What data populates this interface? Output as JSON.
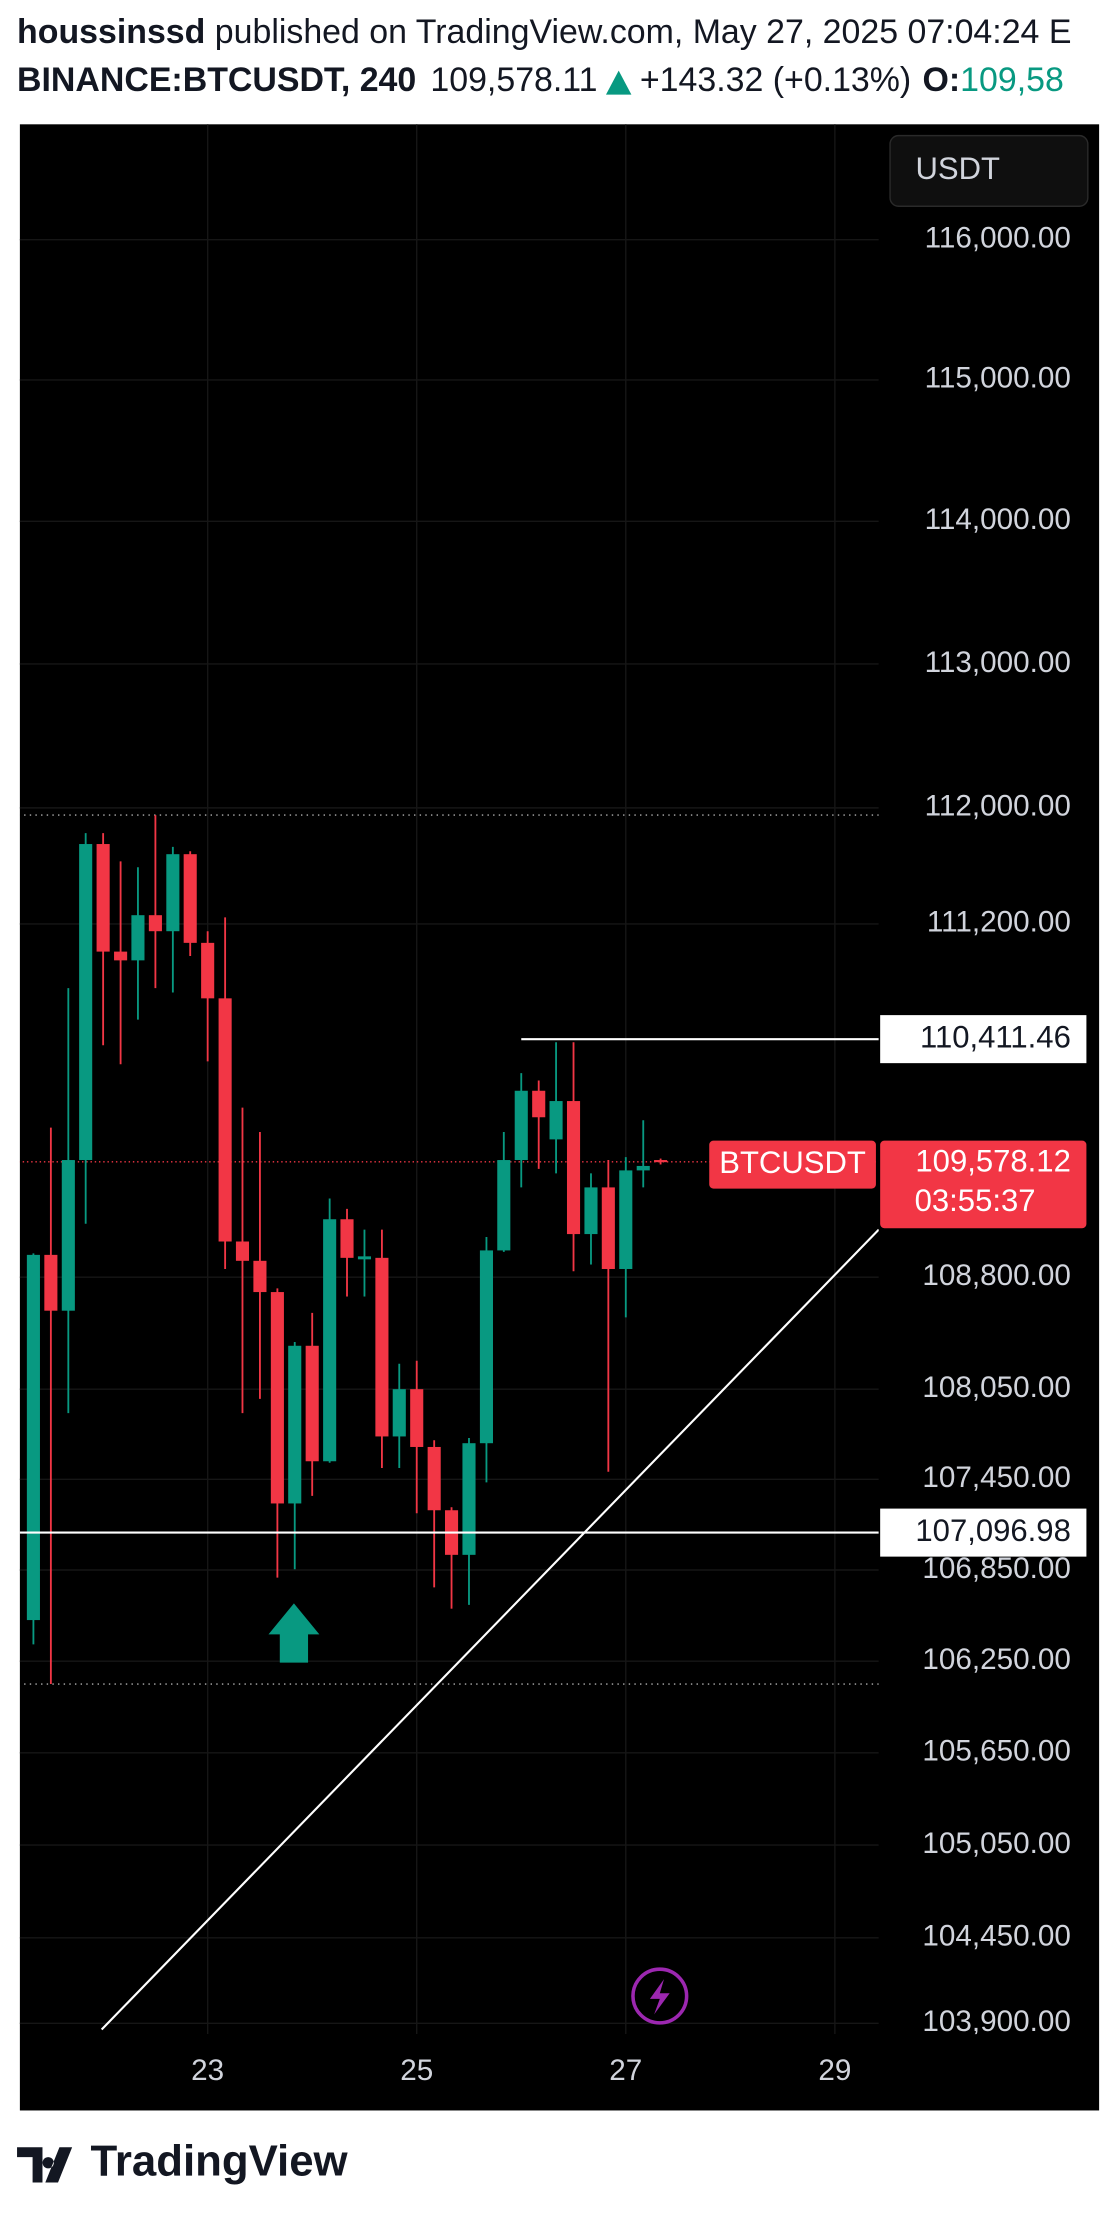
{
  "header": {
    "author": "houssinssd",
    "published": "published on TradingView.com, May 27, 2025 07:04:24 E",
    "symbol": "BINANCE:BTCUSDT, 240",
    "price": "109,578.11",
    "change": "+143.32 (+0.13%)",
    "open_label": "O:",
    "open_value": "109,58"
  },
  "chart_data": {
    "type": "candlestick",
    "currency": "USDT",
    "log_scale": true,
    "grid": true,
    "up_color": "#089981",
    "down_color": "#f23645",
    "xlim": [
      21.19,
      29.42
    ],
    "xticks": [
      23,
      25,
      27,
      29
    ],
    "ylim": [
      103830,
      116840
    ],
    "yticks": [
      {
        "value": 116000,
        "label": "116,000.00"
      },
      {
        "value": 115000,
        "label": "115,000.00"
      },
      {
        "value": 114000,
        "label": "114,000.00"
      },
      {
        "value": 113000,
        "label": "113,000.00"
      },
      {
        "value": 112000,
        "label": "112,000.00"
      },
      {
        "value": 111200,
        "label": "111,200.00"
      },
      {
        "value": 108800,
        "label": "108,800.00"
      },
      {
        "value": 108050,
        "label": "108,050.00"
      },
      {
        "value": 107450,
        "label": "107,450.00"
      },
      {
        "value": 106850,
        "label": "106,850.00"
      },
      {
        "value": 106250,
        "label": "106,250.00"
      },
      {
        "value": 105650,
        "label": "105,650.00"
      },
      {
        "value": 105050,
        "label": "105,050.00"
      },
      {
        "value": 104450,
        "label": "104,450.00"
      },
      {
        "value": 103900,
        "label": "103,900.00"
      }
    ],
    "x": [
      21.333,
      21.5,
      21.667,
      21.833,
      22,
      22.167,
      22.333,
      22.5,
      22.667,
      22.833,
      23,
      23.167,
      23.333,
      23.5,
      23.667,
      23.833,
      24,
      24.167,
      24.333,
      24.5,
      24.667,
      24.833,
      25,
      25.167,
      25.333,
      25.5,
      25.667,
      25.833,
      26,
      26.167,
      26.333,
      26.5,
      26.667,
      26.833,
      27,
      27.167,
      27.333
    ],
    "open": [
      106520,
      108950,
      108575,
      109590,
      111750,
      111010,
      110950,
      111260,
      111150,
      111680,
      111070,
      110690,
      109040,
      108910,
      108700,
      107290,
      108340,
      107570,
      109190,
      108920,
      108930,
      107735,
      108050,
      107665,
      107245,
      106950,
      107690,
      108980,
      109590,
      110060,
      109730,
      109990,
      109090,
      109405,
      108855,
      109520,
      109590
    ],
    "high": [
      108960,
      109810,
      110760,
      111825,
      111825,
      111630,
      111590,
      111950,
      111730,
      111700,
      111150,
      111245,
      109945,
      109780,
      108725,
      108365,
      108560,
      109330,
      109260,
      109120,
      109120,
      108220,
      108240,
      107710,
      107265,
      107725,
      109070,
      109780,
      110180,
      110130,
      110390,
      110390,
      109500,
      109590,
      109610,
      109860,
      109600
    ],
    "low": [
      106360,
      106100,
      107890,
      109160,
      110370,
      110240,
      110545,
      110760,
      110730,
      110980,
      110260,
      108855,
      107890,
      107985,
      106800,
      106855,
      107340,
      107560,
      108670,
      108670,
      107525,
      107525,
      107225,
      106735,
      106595,
      106620,
      107430,
      108970,
      109405,
      109530,
      109500,
      108840,
      108885,
      107500,
      108530,
      109405,
      109560
    ],
    "close": [
      108950,
      108575,
      109590,
      111750,
      111010,
      110950,
      111260,
      111150,
      111680,
      111070,
      110690,
      109040,
      108910,
      108700,
      107290,
      108340,
      107570,
      109190,
      108930,
      108940,
      107735,
      108050,
      107665,
      107245,
      106950,
      107690,
      108980,
      109590,
      110060,
      109880,
      109990,
      109090,
      109405,
      108855,
      109520,
      109550,
      109578.12
    ],
    "price_lines": [
      {
        "value": 110411.46,
        "label": "110,411.46",
        "x_start": 26
      },
      {
        "value": 107096.98,
        "label": "107,096.98"
      }
    ],
    "last_price": {
      "value": 109578.12,
      "label": "109,578.12",
      "symbol": "BTCUSDT",
      "countdown": "03:55:37"
    },
    "trendline": {
      "x": [
        21.986,
        29.42
      ],
      "y": [
        103860,
        109120
      ]
    }
  },
  "footer": {
    "brand": "TradingView"
  }
}
